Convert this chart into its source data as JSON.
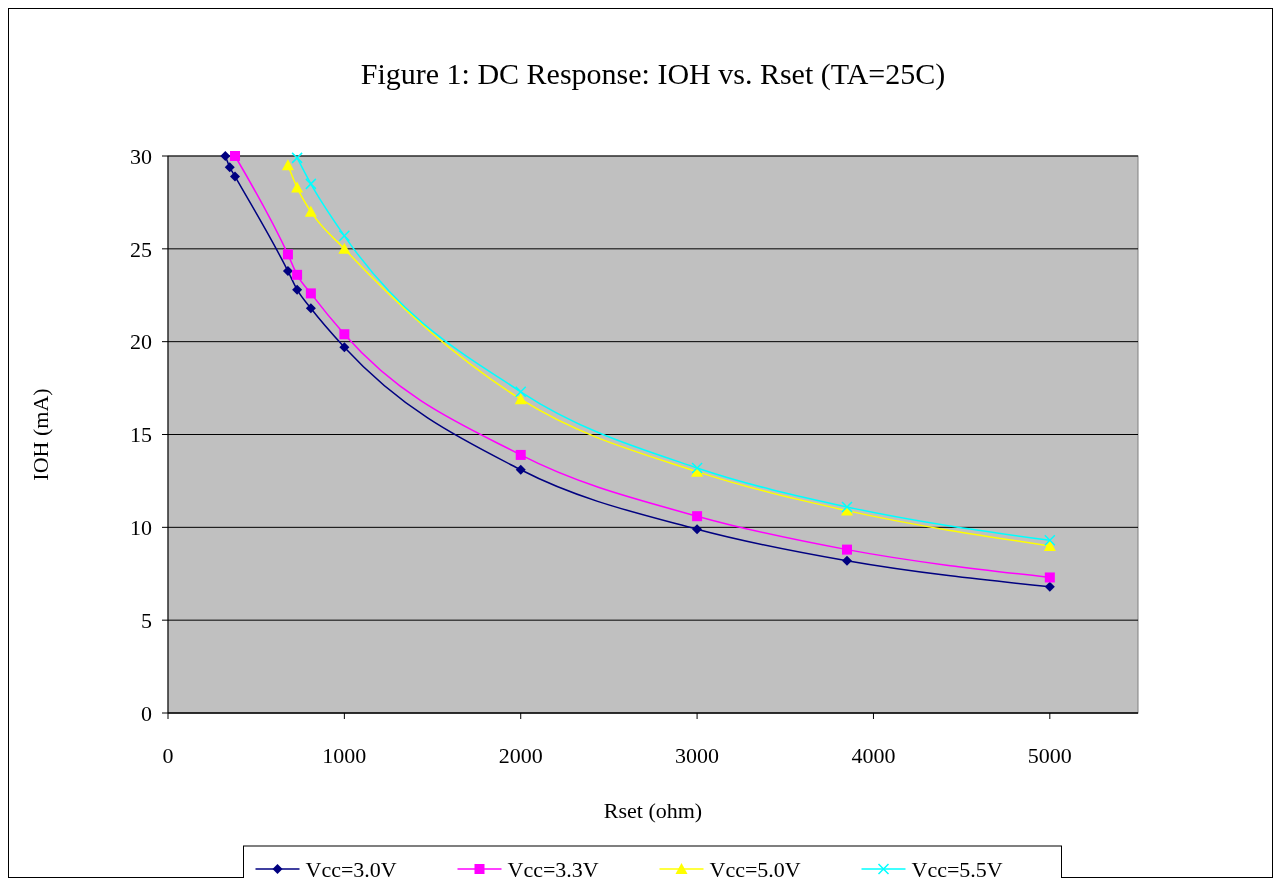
{
  "chart_data": {
    "type": "line",
    "title": "Figure 1:  DC Response: IOH vs. Rset (TA=25C)",
    "xlabel": "Rset (ohm)",
    "ylabel": "IOH (mA)",
    "xlim": [
      0,
      5500
    ],
    "xticks": [
      0,
      1000,
      2000,
      3000,
      4000,
      5000
    ],
    "ylim": [
      0,
      30
    ],
    "yticks": [
      0,
      5,
      10,
      15,
      20,
      25,
      30
    ],
    "grid": "y",
    "legend": "bottom",
    "series": [
      {
        "name": "Vcc=3.0V",
        "color": "#000080",
        "marker": "diamond",
        "x": [
          325,
          350,
          380,
          680,
          732,
          810,
          1000,
          2000,
          3000,
          3850,
          5000
        ],
        "values": [
          30,
          29.4,
          28.9,
          23.8,
          22.8,
          21.8,
          19.7,
          13.1,
          9.9,
          8.2,
          6.8
        ]
      },
      {
        "name": "Vcc=3.3V",
        "color": "#ff00ff",
        "marker": "square",
        "x": [
          380,
          680,
          732,
          810,
          1000,
          2000,
          3000,
          3850,
          5000
        ],
        "values": [
          30,
          24.7,
          23.6,
          22.6,
          20.4,
          13.9,
          10.6,
          8.8,
          7.3
        ]
      },
      {
        "name": "Vcc=5.0V",
        "color": "#ffff00",
        "marker": "triangle",
        "x": [
          680,
          732,
          810,
          1000,
          2000,
          3000,
          3850,
          5000
        ],
        "values": [
          29.5,
          28.3,
          27.0,
          25.0,
          16.9,
          13.0,
          10.9,
          9.0
        ]
      },
      {
        "name": "Vcc=5.5V",
        "color": "#00ffff",
        "marker": "cross",
        "x": [
          732,
          810,
          1000,
          2000,
          3000,
          3850,
          5000
        ],
        "values": [
          29.9,
          28.5,
          25.7,
          17.3,
          13.2,
          11.1,
          9.3
        ]
      }
    ]
  }
}
